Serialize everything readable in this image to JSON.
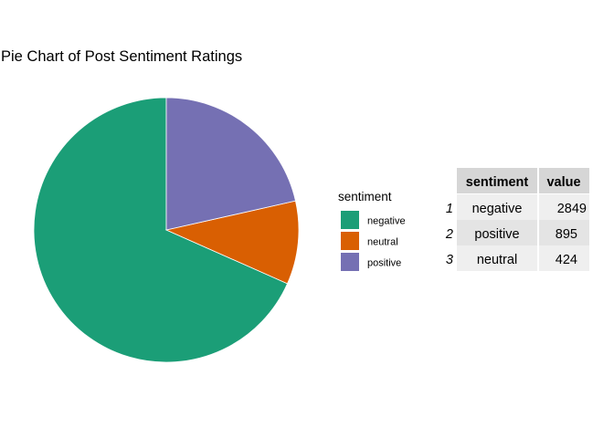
{
  "chart_data": {
    "type": "pie",
    "title": "Pie Chart of Post Sentiment Ratings",
    "slices": [
      {
        "name": "negative",
        "value": 2849,
        "color": "#1B9E77"
      },
      {
        "name": "neutral",
        "value": 424,
        "color": "#D95F02"
      },
      {
        "name": "positive",
        "value": 895,
        "color": "#7570B3"
      }
    ],
    "legend": {
      "title": "sentiment",
      "placement": "right",
      "items": [
        "negative",
        "neutral",
        "positive"
      ]
    },
    "table": {
      "headers": [
        "sentiment",
        "value"
      ],
      "rows": [
        {
          "rowname": "1",
          "sentiment": "negative",
          "value": "2849"
        },
        {
          "rowname": "2",
          "sentiment": "positive",
          "value": "895"
        },
        {
          "rowname": "3",
          "sentiment": "neutral",
          "value": "424"
        }
      ],
      "colors": {
        "header_bg": "#D6D6D6",
        "row_odd_bg": "#EFEFEF",
        "row_even_bg": "#E4E4E4"
      }
    }
  }
}
